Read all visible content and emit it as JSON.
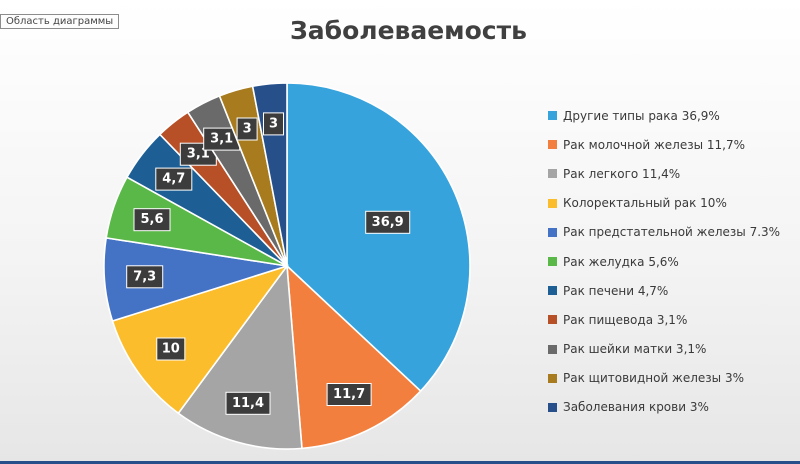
{
  "area_tag": "Область диаграммы",
  "chart_data": {
    "type": "pie",
    "title": "Заболеваемость",
    "legend_position": "right",
    "slices": [
      {
        "label": "Другие типы рака 36,9%",
        "value": 36.9,
        "data_label": "36,9",
        "color": "#36a3dc"
      },
      {
        "label": "Рак молочной железы 11,7%",
        "value": 11.7,
        "data_label": "11,7",
        "color": "#f37f3e"
      },
      {
        "label": "Рак легкого 11,4%",
        "value": 11.4,
        "data_label": "11,4",
        "color": "#a5a5a5"
      },
      {
        "label": "Колоректальный рак 10%",
        "value": 10,
        "data_label": "10",
        "color": "#fcbd2c"
      },
      {
        "label": "Рак предстательной железы 7.3%",
        "value": 7.3,
        "data_label": "7,3",
        "color": "#4473c5"
      },
      {
        "label": "Рак желудка 5,6%",
        "value": 5.6,
        "data_label": "5,6",
        "color": "#5ab848"
      },
      {
        "label": "Рак печени 4,7%",
        "value": 4.7,
        "data_label": "4,7",
        "color": "#1d5f94"
      },
      {
        "label": "Рак пищевода 3,1%",
        "value": 3.1,
        "data_label": "3,1",
        "color": "#b74f27"
      },
      {
        "label": "Рак шейки матки 3,1%",
        "value": 3.1,
        "data_label": "3,1",
        "color": "#6a6a6a"
      },
      {
        "label": "Рак щитовидной железы 3%",
        "value": 3,
        "data_label": "3",
        "color": "#a77b1e"
      },
      {
        "label": "Заболевания крови 3%",
        "value": 3,
        "data_label": "3",
        "color": "#27508a"
      }
    ]
  }
}
